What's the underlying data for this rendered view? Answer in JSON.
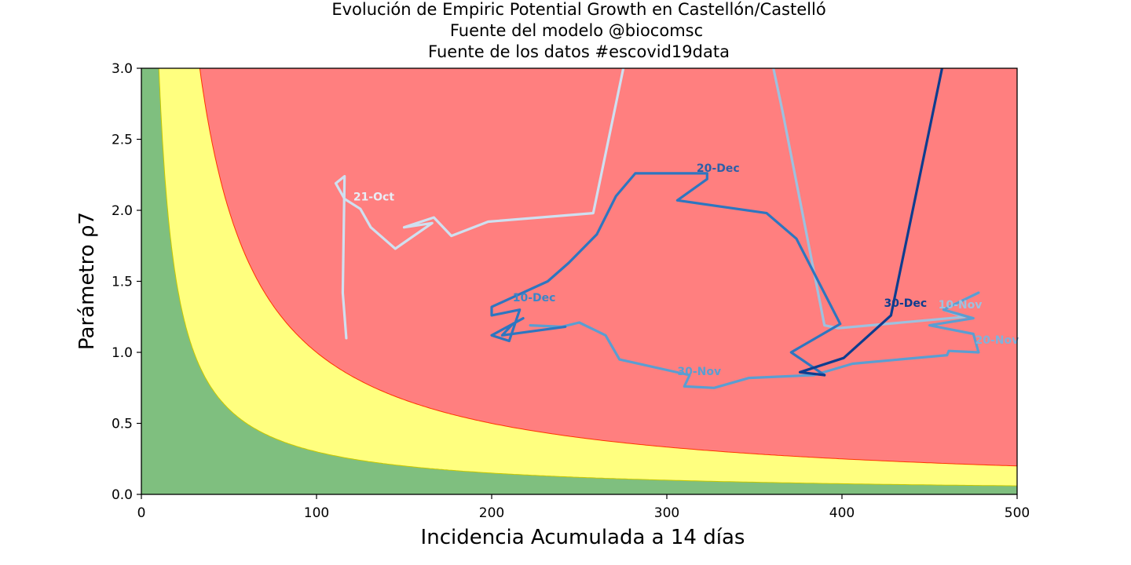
{
  "chart_data": {
    "type": "line",
    "title": [
      "Evolución de Empiric Potential Growth en Castellón/Castelló",
      "Fuente del modelo @biocomsc",
      "Fuente de los datos #escovid19data"
    ],
    "xlabel": "Incidencia Acumulada a 14 días",
    "ylabel": "Parámetro ρ7",
    "xlim": [
      0,
      500
    ],
    "ylim": [
      0,
      3
    ],
    "xticks": [
      "0",
      "100",
      "200",
      "300",
      "400",
      "500"
    ],
    "yticks": [
      "0.0",
      "0.5",
      "1.0",
      "1.5",
      "2.0",
      "2.5",
      "3.0"
    ],
    "grid": false,
    "regions": [
      {
        "name": "green",
        "color": "#7fbf7f",
        "rule": "EPG < 30"
      },
      {
        "name": "yellow",
        "color": "#ffff7f",
        "rule": "30 <= EPG < 100"
      },
      {
        "name": "red",
        "color": "#ff7f7f",
        "rule": "EPG >= 100"
      }
    ],
    "region_boundaries": [
      {
        "epg": 30,
        "color": "#c8c800"
      },
      {
        "epg": 100,
        "color": "#ff3300"
      }
    ],
    "series": [
      {
        "color": "#cfe0f0",
        "points": [
          [
            117,
            1.1
          ],
          [
            115,
            1.42
          ],
          [
            116,
            2.24
          ],
          [
            111,
            2.19
          ],
          [
            116,
            2.08
          ],
          [
            125,
            2.01
          ],
          [
            131,
            1.88
          ],
          [
            145,
            1.73
          ],
          [
            166,
            1.91
          ],
          [
            150,
            1.88
          ],
          [
            167,
            1.95
          ],
          [
            177,
            1.82
          ],
          [
            198,
            1.92
          ],
          [
            258,
            1.98
          ],
          [
            276,
            3.05
          ]
        ]
      },
      {
        "color": "#9dc1df",
        "points": [
          [
            360,
            3.05
          ],
          [
            366,
            2.7
          ],
          [
            390,
            1.19
          ],
          [
            398,
            1.17
          ],
          [
            470,
            1.25
          ],
          [
            458,
            1.3
          ],
          [
            478,
            1.42
          ]
        ]
      },
      {
        "color": "#5a9ed2",
        "points": [
          [
            478,
            1.42
          ],
          [
            458,
            1.3
          ],
          [
            475,
            1.24
          ],
          [
            450,
            1.19
          ],
          [
            475,
            1.13
          ],
          [
            478,
            1.0
          ],
          [
            461,
            1.01
          ],
          [
            460,
            0.98
          ],
          [
            406,
            0.92
          ],
          [
            384,
            0.84
          ],
          [
            347,
            0.82
          ],
          [
            327,
            0.75
          ],
          [
            310,
            0.76
          ],
          [
            313,
            0.84
          ],
          [
            273,
            0.95
          ],
          [
            265,
            1.12
          ],
          [
            250,
            1.21
          ],
          [
            240,
            1.18
          ],
          [
            222,
            1.19
          ]
        ]
      },
      {
        "color": "#2d76c0",
        "points": [
          [
            242,
            1.18
          ],
          [
            206,
            1.12
          ],
          [
            212,
            1.2
          ],
          [
            218,
            1.24
          ],
          [
            200,
            1.12
          ],
          [
            210,
            1.08
          ],
          [
            216,
            1.3
          ],
          [
            200,
            1.26
          ],
          [
            200,
            1.32
          ],
          [
            232,
            1.5
          ],
          [
            244,
            1.63
          ],
          [
            260,
            1.83
          ],
          [
            271,
            2.1
          ],
          [
            282,
            2.26
          ],
          [
            323,
            2.26
          ],
          [
            323,
            2.22
          ],
          [
            306,
            2.07
          ],
          [
            357,
            1.98
          ],
          [
            374,
            1.8
          ],
          [
            399,
            1.2
          ],
          [
            371,
            1.0
          ],
          [
            390,
            0.84
          ]
        ]
      },
      {
        "color": "#0d3d8f",
        "points": [
          [
            390,
            0.84
          ],
          [
            376,
            0.86
          ],
          [
            401,
            0.96
          ],
          [
            428,
            1.26
          ],
          [
            458,
            3.05
          ]
        ]
      }
    ],
    "annotations": [
      {
        "text": "21-Oct",
        "x": 121,
        "y": 2.07,
        "color": "#e8eef6"
      },
      {
        "text": "20-Dec",
        "x": 317,
        "y": 2.27,
        "color": "#2d5fa8"
      },
      {
        "text": "10-Dec",
        "x": 212,
        "y": 1.36,
        "color": "#3c86c8"
      },
      {
        "text": "30-Nov",
        "x": 306,
        "y": 0.84,
        "color": "#5a9ed2"
      },
      {
        "text": "30-Dec",
        "x": 424,
        "y": 1.32,
        "color": "#0d3d8f"
      },
      {
        "text": "10-Nov",
        "x": 455,
        "y": 1.31,
        "color": "#9dc1df"
      },
      {
        "text": "20-Nov",
        "x": 476,
        "y": 1.06,
        "color": "#7fb2dc"
      }
    ]
  }
}
